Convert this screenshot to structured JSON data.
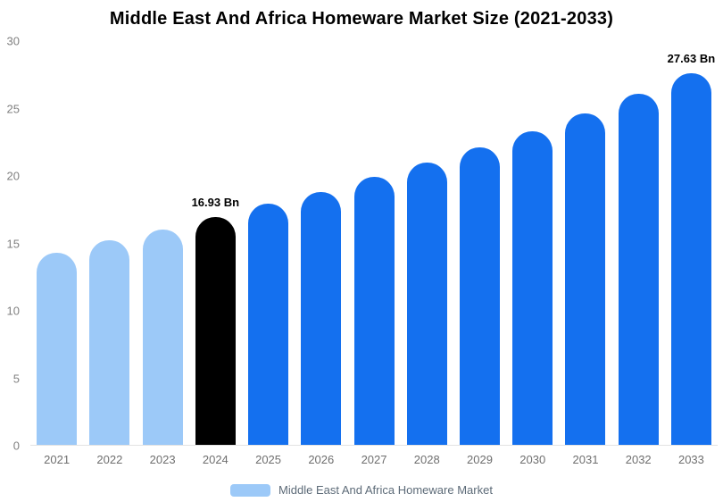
{
  "title": "Middle East And Africa Homeware Market Size (2021-2033)",
  "legend": {
    "label": "Middle East And Africa Homeware Market",
    "swatch_color": "#9cc9f8"
  },
  "colors": {
    "light_blue": "#9cc9f8",
    "highlight_black": "#000000",
    "blue": "#1470ef",
    "axis_text": "#808080",
    "x_label_text": "#6f6f6f"
  },
  "chart_data": {
    "type": "bar",
    "title": "Middle East And Africa Homeware Market Size (2021-2033)",
    "xlabel": "",
    "ylabel": "",
    "ylim": [
      0,
      30
    ],
    "yticks": [
      0,
      5,
      10,
      15,
      20,
      25,
      30
    ],
    "grid": false,
    "legend_position": "bottom",
    "categories": [
      "2021",
      "2022",
      "2023",
      "2024",
      "2025",
      "2026",
      "2027",
      "2028",
      "2029",
      "2030",
      "2031",
      "2032",
      "2033"
    ],
    "values": [
      14.3,
      15.2,
      16.0,
      16.93,
      17.9,
      18.8,
      19.9,
      21.0,
      22.1,
      23.3,
      24.6,
      26.1,
      27.63
    ],
    "bar_colors": [
      "#9cc9f8",
      "#9cc9f8",
      "#9cc9f8",
      "#000000",
      "#1470ef",
      "#1470ef",
      "#1470ef",
      "#1470ef",
      "#1470ef",
      "#1470ef",
      "#1470ef",
      "#1470ef",
      "#1470ef"
    ],
    "annotations": [
      {
        "index": 3,
        "text": "16.93 Bn"
      },
      {
        "index": 12,
        "text": "27.63 Bn"
      }
    ],
    "series_name": "Middle East And Africa Homeware Market"
  }
}
